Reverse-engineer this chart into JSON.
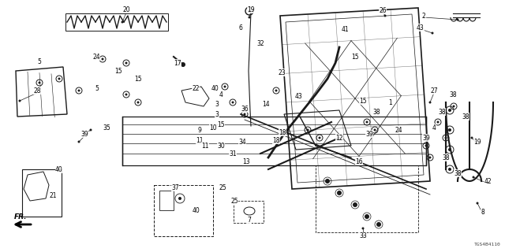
{
  "part_number": "TGS4B4110",
  "background_color": "#ffffff",
  "figsize": [
    6.4,
    3.2
  ],
  "dpi": 100,
  "line_color": "#1a1a1a",
  "text_color": "#000000",
  "label_fontsize": 5.5
}
